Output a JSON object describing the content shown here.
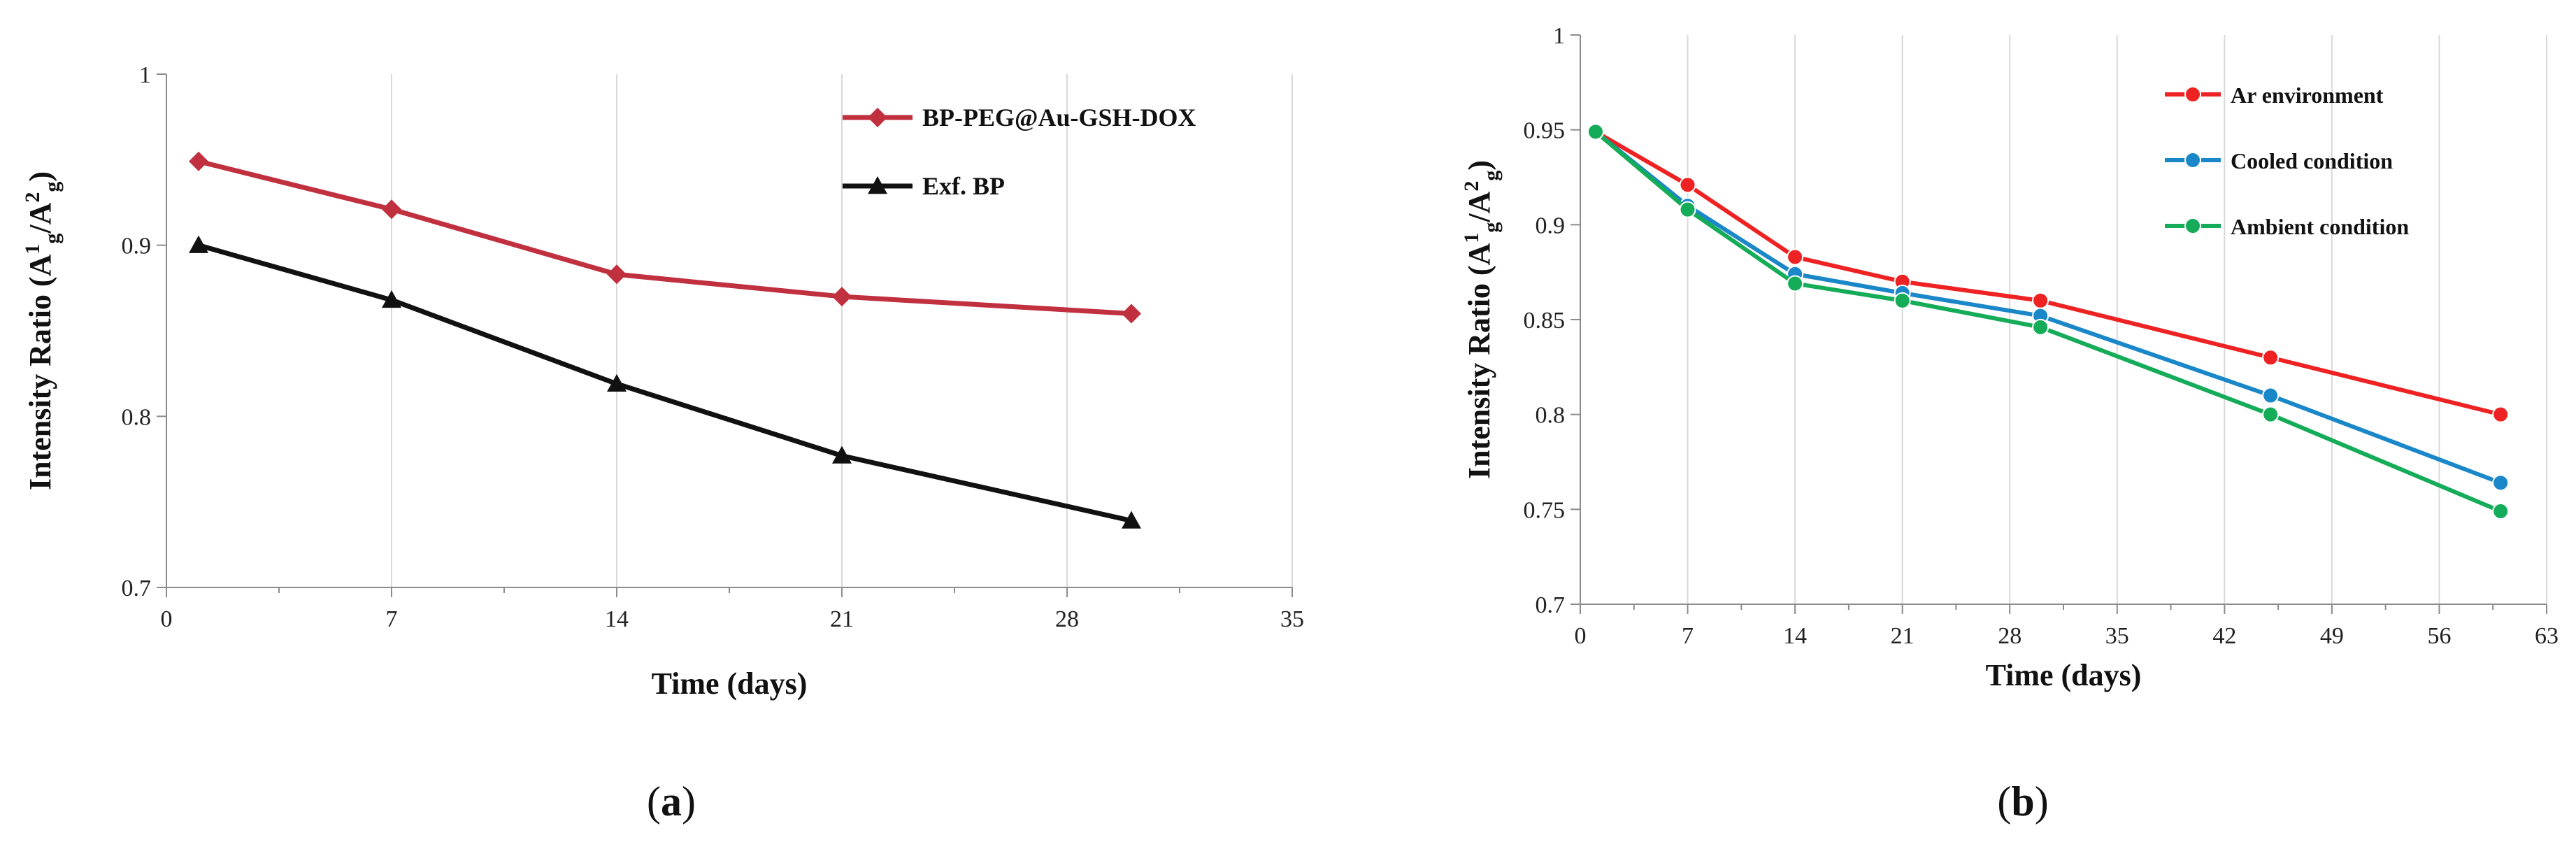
{
  "panels": [
    {
      "caption_letter": "a",
      "chart_data": {
        "type": "line",
        "xlabel": "Time  (days)",
        "ylabel": "Intensity Ratio (A¹g/A²g)",
        "ylabel_parts": [
          "Intensity Ratio (A",
          "1",
          "g",
          "/A",
          "2",
          "g",
          ")"
        ],
        "xlim": [
          0,
          35
        ],
        "ylim": [
          0.7,
          1
        ],
        "xticks": [
          0,
          7,
          14,
          21,
          28,
          35
        ],
        "yticks": [
          0.7,
          0.8,
          0.9,
          1
        ],
        "ytick_labels": [
          "0.7",
          "0.8",
          "0.9",
          "1"
        ],
        "grid": "vertical",
        "legend_position": "top-right",
        "series": [
          {
            "name": "BP-PEG@Au-GSH-DOX",
            "color": "#c0303f",
            "marker": "diamond",
            "x": [
              1,
              7,
              14,
              21,
              30
            ],
            "y": [
              0.949,
              0.921,
              0.883,
              0.87,
              0.86
            ]
          },
          {
            "name": "Exf. BP",
            "color": "#111111",
            "marker": "triangle",
            "x": [
              1,
              7,
              14,
              21,
              30
            ],
            "y": [
              0.9,
              0.868,
              0.819,
              0.777,
              0.739
            ]
          }
        ]
      }
    },
    {
      "caption_letter": "b",
      "chart_data": {
        "type": "line",
        "xlabel": "Time (days)",
        "ylabel": "Intensity Ratio (A¹g/A²g)",
        "ylabel_parts": [
          "Intensity Ratio (A",
          "1",
          "g",
          "/A",
          "2",
          "g",
          ")"
        ],
        "xlim": [
          0,
          63
        ],
        "ylim": [
          0.7,
          1
        ],
        "xticks": [
          0,
          7,
          14,
          21,
          28,
          35,
          42,
          49,
          56,
          63
        ],
        "yticks": [
          0.7,
          0.75,
          0.8,
          0.85,
          0.9,
          0.95,
          1
        ],
        "ytick_labels": [
          "0.7",
          "0.75",
          "0.8",
          "0.85",
          "0.9",
          "0.95",
          "1"
        ],
        "grid": "vertical",
        "legend_position": "top-right",
        "series": [
          {
            "name": "Ar environment",
            "color": "#ee2222",
            "marker": "circle",
            "x": [
              1,
              7,
              14,
              21,
              30,
              45,
              60
            ],
            "y": [
              0.949,
              0.921,
              0.883,
              0.87,
              0.86,
              0.83,
              0.8
            ]
          },
          {
            "name": "Cooled condition",
            "color": "#1a87c9",
            "marker": "circle",
            "x": [
              1,
              7,
              14,
              21,
              30,
              45,
              60
            ],
            "y": [
              0.949,
              0.91,
              0.874,
              0.864,
              0.852,
              0.81,
              0.764
            ]
          },
          {
            "name": "Ambient condition",
            "color": "#14ac58",
            "marker": "circle",
            "x": [
              1,
              7,
              14,
              21,
              30,
              45,
              60
            ],
            "y": [
              0.949,
              0.908,
              0.869,
              0.86,
              0.846,
              0.8,
              0.749
            ]
          }
        ]
      }
    }
  ]
}
